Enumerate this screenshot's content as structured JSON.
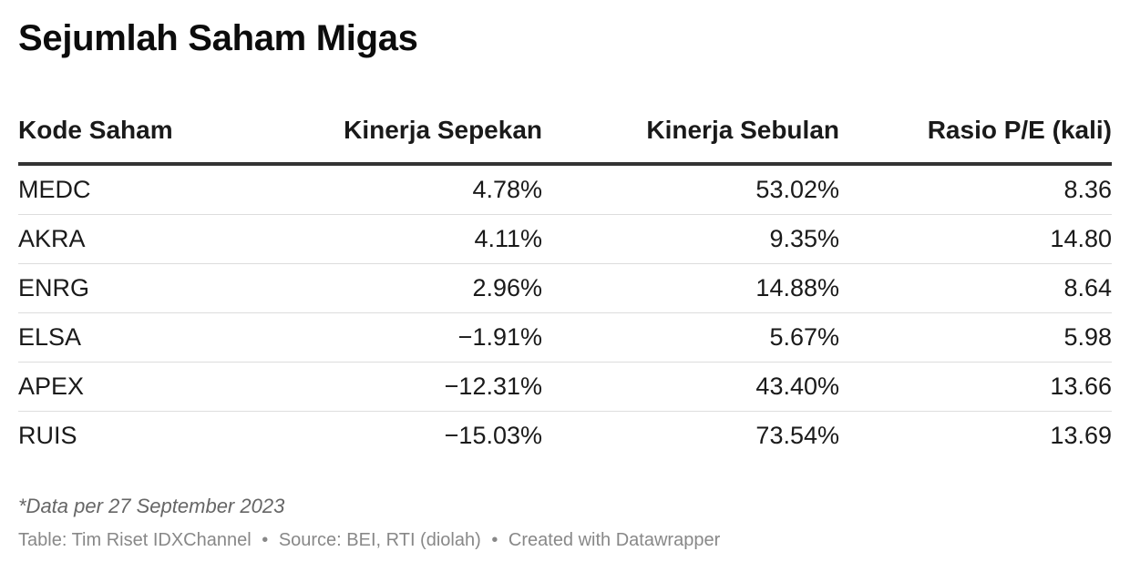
{
  "title": "Sejumlah Saham Migas",
  "chart_data": {
    "type": "table",
    "title": "Sejumlah Saham Migas",
    "columns": [
      "Kode Saham",
      "Kinerja Sepekan",
      "Kinerja Sebulan",
      "Rasio P/E (kali)"
    ],
    "rows": [
      [
        "MEDC",
        "4.78%",
        "53.02%",
        "8.36"
      ],
      [
        "AKRA",
        "4.11%",
        "9.35%",
        "14.80"
      ],
      [
        "ENRG",
        "2.96%",
        "14.88%",
        "8.64"
      ],
      [
        "ELSA",
        "−1.91%",
        "5.67%",
        "5.98"
      ],
      [
        "APEX",
        "−12.31%",
        "43.40%",
        "13.66"
      ],
      [
        "RUIS",
        "−15.03%",
        "73.54%",
        "13.69"
      ]
    ]
  },
  "note": "*Data per 27 September 2023",
  "footer": {
    "table_credit": "Table: Tim Riset IDXChannel",
    "source": "Source: BEI, RTI (diolah)",
    "created_with": "Created with Datawrapper",
    "separator": "•"
  }
}
